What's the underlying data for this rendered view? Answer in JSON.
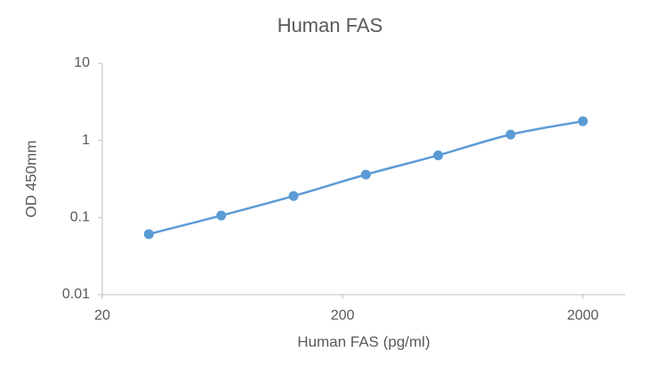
{
  "chart_data": {
    "type": "line",
    "title": "Human FAS",
    "x_label": "Human FAS (pg/ml)",
    "y_label": "OD 450mm",
    "x": [
      31.25,
      62.5,
      125,
      250,
      500,
      1000,
      2000
    ],
    "series": [
      {
        "name": "Human FAS",
        "color": "#5b9bd5",
        "values": [
          0.061,
          0.106,
          0.19,
          0.36,
          0.64,
          1.19,
          1.77
        ]
      }
    ],
    "x_log": true,
    "y_log": true,
    "xlim": [
      20,
      3000
    ],
    "xticks": [
      20,
      200,
      2000
    ],
    "ylim": [
      0.01,
      10
    ],
    "yticks": [
      0.01,
      0.1,
      1,
      10
    ]
  }
}
